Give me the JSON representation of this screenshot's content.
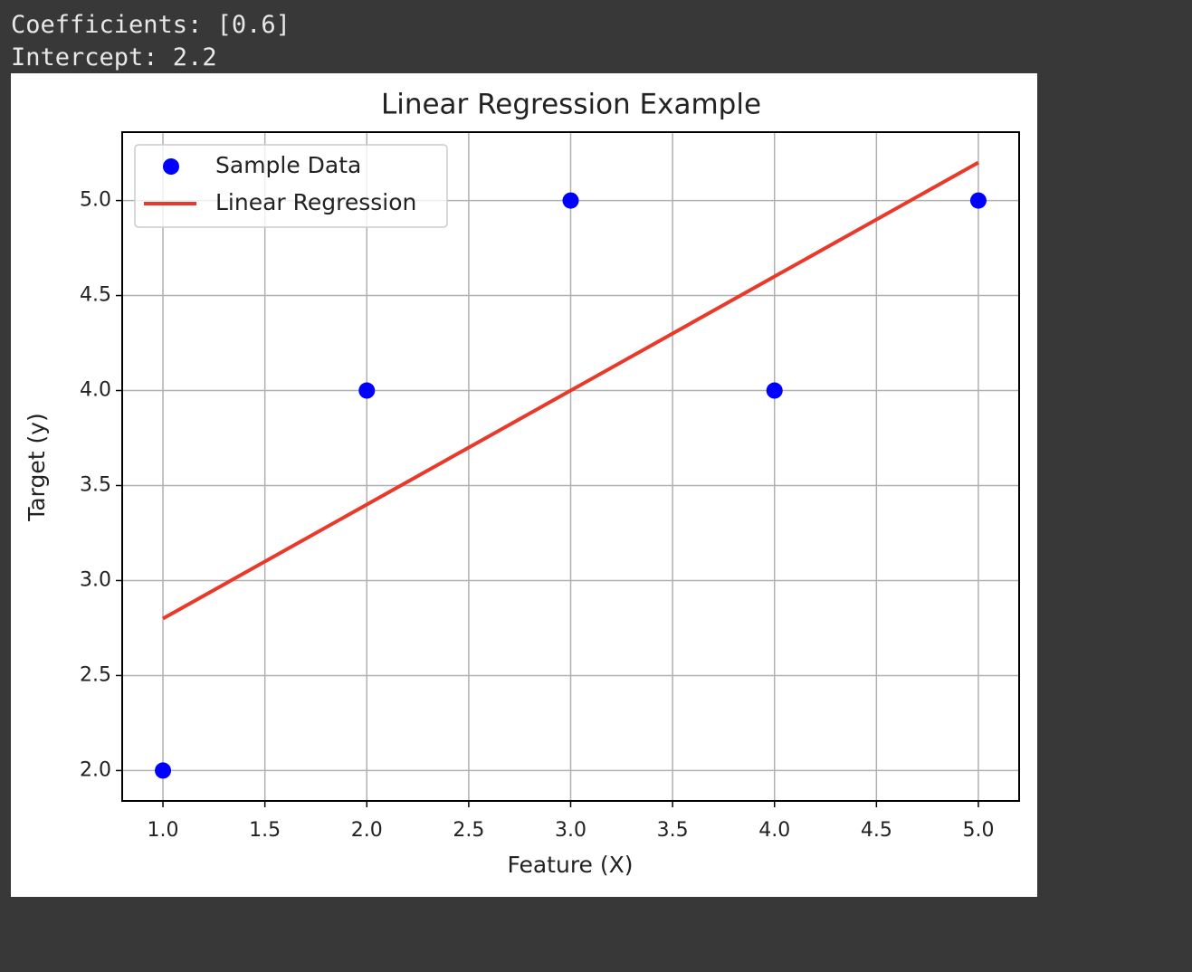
{
  "output_lines": [
    "Coefficients: [0.6]",
    "Intercept: 2.2"
  ],
  "chart_data": {
    "type": "scatter",
    "title": "Linear Regression Example",
    "x_label": "Feature (X)",
    "y_label": "Target (y)",
    "x": [
      1,
      2,
      3,
      4,
      5
    ],
    "series": [
      {
        "name": "Sample Data",
        "type": "scatter",
        "color": "#0000ff",
        "values": [
          2,
          4,
          5,
          4,
          5
        ]
      },
      {
        "name": "Linear Regression",
        "type": "line",
        "color": "#e8392b",
        "values": [
          2.8,
          3.4,
          4.0,
          4.6,
          5.2
        ]
      }
    ],
    "xlim": [
      0.8,
      5.2
    ],
    "xticks": [
      {
        "value": 1,
        "label": "1.0"
      },
      {
        "value": 1.5,
        "label": "1.5"
      },
      {
        "value": 2,
        "label": "2.0"
      },
      {
        "value": 2.5,
        "label": "2.5"
      },
      {
        "value": 3,
        "label": "3.0"
      },
      {
        "value": 3.5,
        "label": "3.5"
      },
      {
        "value": 4,
        "label": "4.0"
      },
      {
        "value": 4.5,
        "label": "4.5"
      },
      {
        "value": 5,
        "label": "5.0"
      }
    ],
    "ylim": [
      1.84,
      5.36
    ],
    "yticks": [
      {
        "value": 2,
        "label": "2.0"
      },
      {
        "value": 2.5,
        "label": "2.5"
      },
      {
        "value": 3,
        "label": "3.0"
      },
      {
        "value": 3.5,
        "label": "3.5"
      },
      {
        "value": 4,
        "label": "4.0"
      },
      {
        "value": 4.5,
        "label": "4.5"
      },
      {
        "value": 5,
        "label": "5.0"
      }
    ],
    "grid": true,
    "legend": "upper left"
  }
}
